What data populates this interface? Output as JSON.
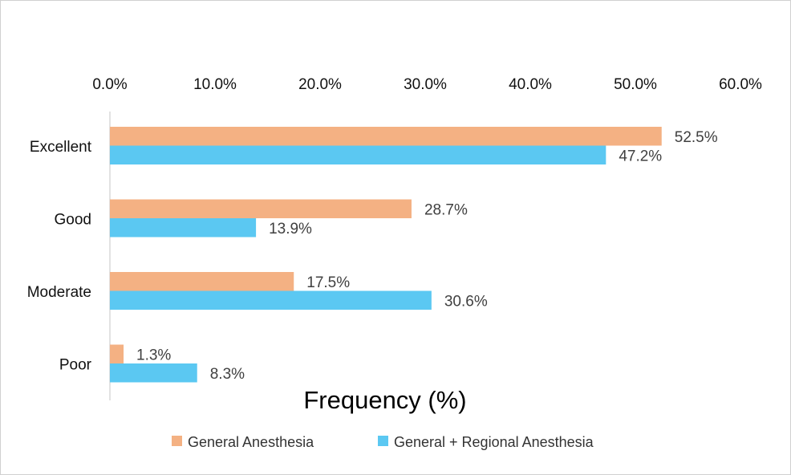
{
  "chart_data": {
    "type": "bar",
    "orientation": "horizontal",
    "categories": [
      "Excellent",
      "Good",
      "Moderate",
      "Poor"
    ],
    "series": [
      {
        "name": "General Anesthesia",
        "values": [
          52.5,
          28.7,
          17.5,
          1.3
        ],
        "labels": [
          "52.5%",
          "28.7%",
          "17.5%",
          "1.3%"
        ],
        "color": "#F4B183"
      },
      {
        "name": "General + Regional Anesthesia",
        "values": [
          47.2,
          13.9,
          30.6,
          8.3
        ],
        "labels": [
          "47.2%",
          "13.9%",
          "30.6%",
          "8.3%"
        ],
        "color": "#5BC8F2"
      }
    ],
    "xlim": [
      0,
      60
    ],
    "x_ticks": [
      0,
      10,
      20,
      30,
      40,
      50,
      60
    ],
    "x_tick_labels": [
      "0.0%",
      "10.0%",
      "20.0%",
      "30.0%",
      "40.0%",
      "50.0%",
      "60.0%"
    ],
    "x_axis_position": "top",
    "xlabel": "Frequency (%)",
    "ylabel": "",
    "legend_position": "bottom",
    "grid": false
  }
}
